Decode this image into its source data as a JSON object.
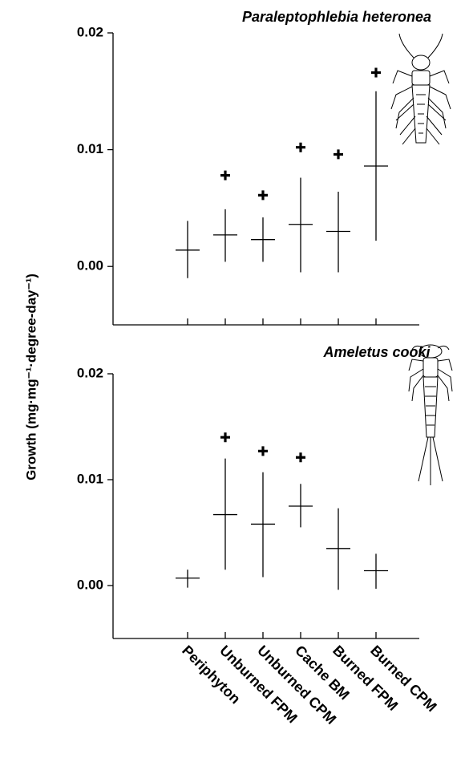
{
  "ylabel": "Growth (mg·mg⁻¹·degree-day⁻¹)",
  "categories": [
    "Periphyton",
    "Unburned FPM",
    "Unburned CPM",
    "Cache BM",
    "Burned FPM",
    "Burned CPM"
  ],
  "chart_data": [
    {
      "type": "errorbar",
      "title": "Paraleptophlebia heteronea",
      "values": [
        0.0014,
        0.0027,
        0.0023,
        0.0036,
        0.003,
        0.0086
      ],
      "lower": [
        -0.001,
        0.0004,
        0.0004,
        -0.0005,
        -0.0005,
        0.0022
      ],
      "upper": [
        0.0039,
        0.0049,
        0.0042,
        0.0076,
        0.0064,
        0.015
      ],
      "significance_markers": [
        null,
        0.0078,
        0.0061,
        0.0102,
        0.0096,
        0.0166
      ],
      "ylim": [
        -0.005,
        0.02
      ],
      "yticks": [
        {
          "value": 0,
          "label": "0.00"
        },
        {
          "value": 0.01,
          "label": "0.01"
        },
        {
          "value": 0.02,
          "label": "0.02"
        }
      ],
      "color": "#000000"
    },
    {
      "type": "errorbar",
      "title": "Ameletus cooki",
      "values": [
        0.0007,
        0.0067,
        0.0058,
        0.0075,
        0.0035,
        0.0014
      ],
      "lower": [
        -0.0002,
        0.0015,
        0.0008,
        0.0055,
        -0.0004,
        -0.0003
      ],
      "upper": [
        0.0015,
        0.012,
        0.0107,
        0.0096,
        0.0073,
        0.003
      ],
      "significance_markers": [
        null,
        0.014,
        0.0127,
        0.0121,
        null,
        null
      ],
      "ylim": [
        -0.005,
        0.02
      ],
      "yticks": [
        {
          "value": 0,
          "label": "0.00"
        },
        {
          "value": 0.01,
          "label": "0.01"
        },
        {
          "value": 0.02,
          "label": "0.02"
        }
      ],
      "color": "#000000"
    }
  ]
}
